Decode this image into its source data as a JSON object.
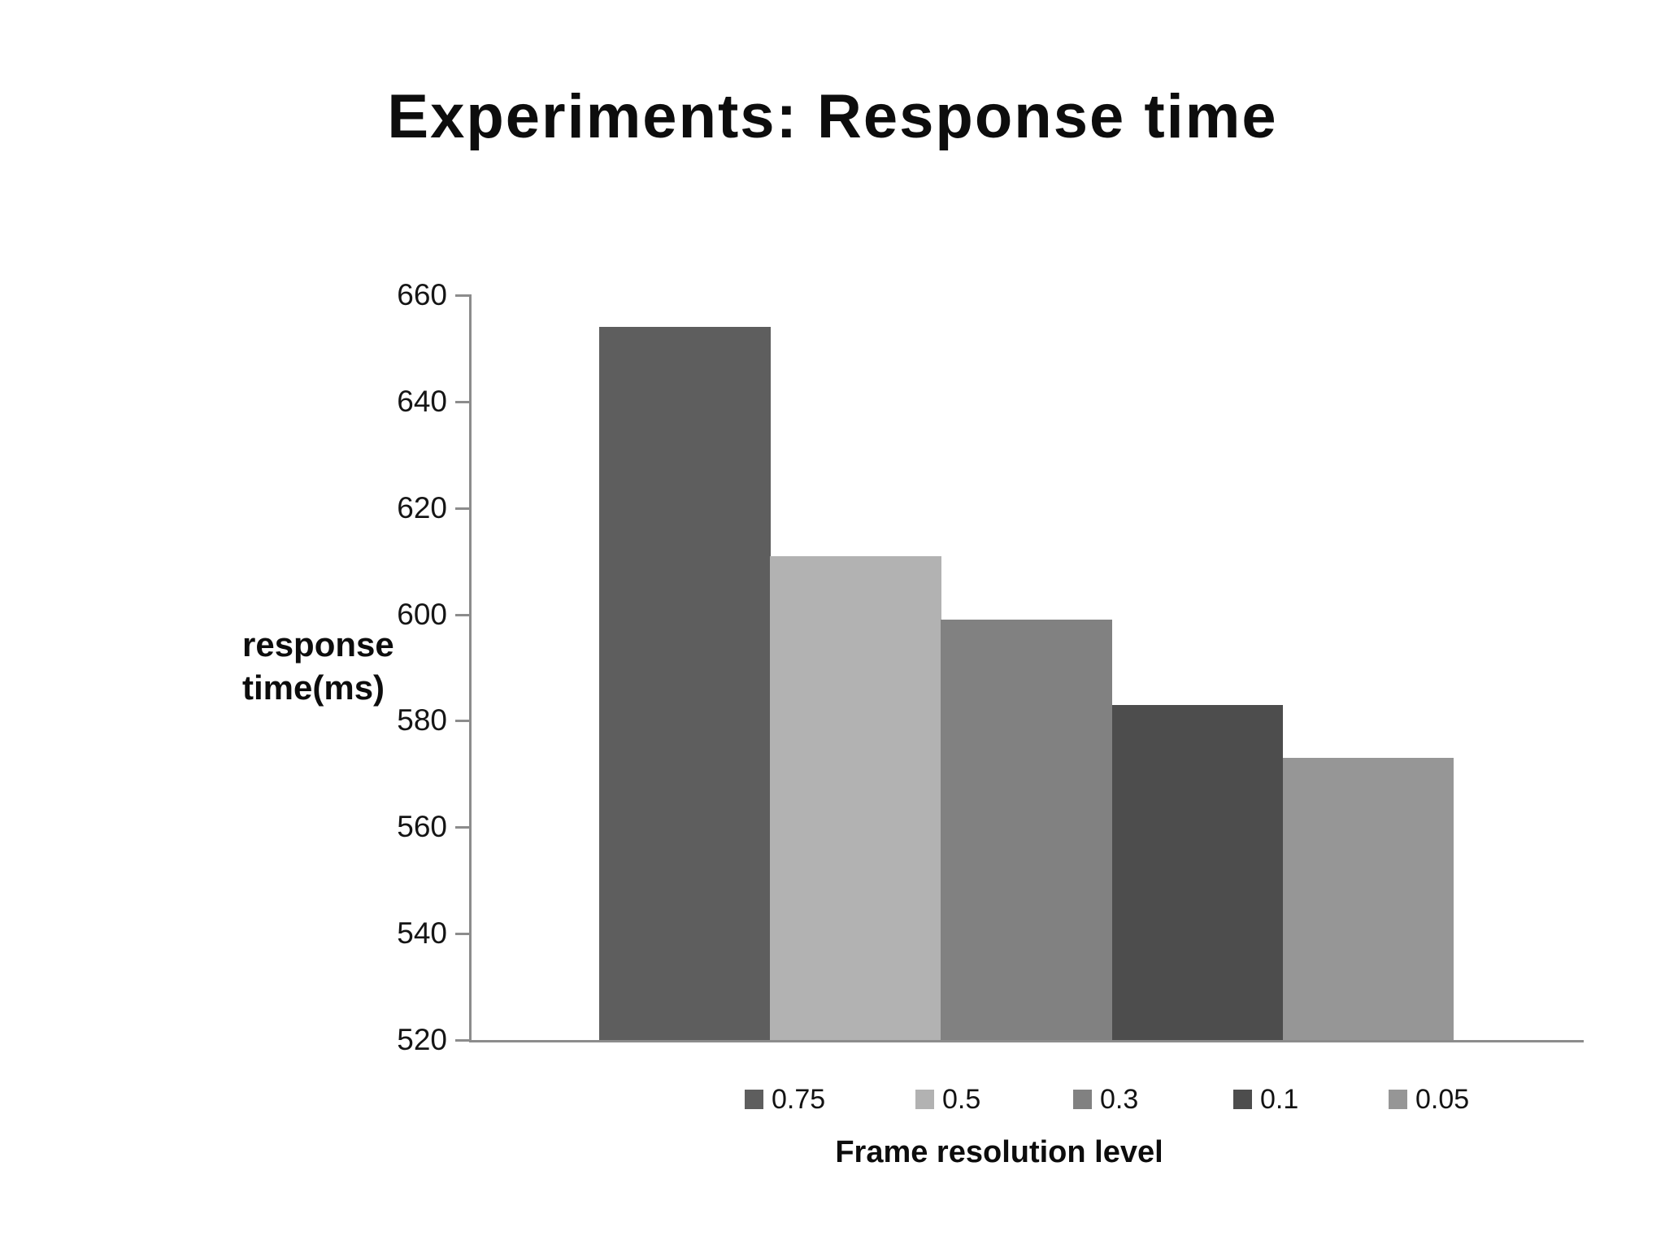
{
  "slide": {
    "background": "#ffffff"
  },
  "chart_data": {
    "type": "bar",
    "title": "Experiments: Response time",
    "categories": [
      "0.75",
      "0.5",
      "0.3",
      "0.1",
      "0.05"
    ],
    "values": [
      654,
      611,
      599,
      583,
      573
    ],
    "series_colors": [
      "#5e5e5e",
      "#b2b2b2",
      "#818181",
      "#4d4d4d",
      "#969696"
    ],
    "xlabel": "Frame resolution level",
    "ylabel": "response time(ms)",
    "ylabel_lines": [
      "response",
      "time(ms)"
    ],
    "ylim": [
      520,
      660
    ],
    "ytick_step": 20,
    "yticks": [
      660,
      640,
      620,
      600,
      580,
      560,
      540,
      520
    ],
    "grid": false,
    "legend_position": "bottom",
    "axis_color": "#8c8c8c",
    "text_color": "#0d0d0d"
  }
}
